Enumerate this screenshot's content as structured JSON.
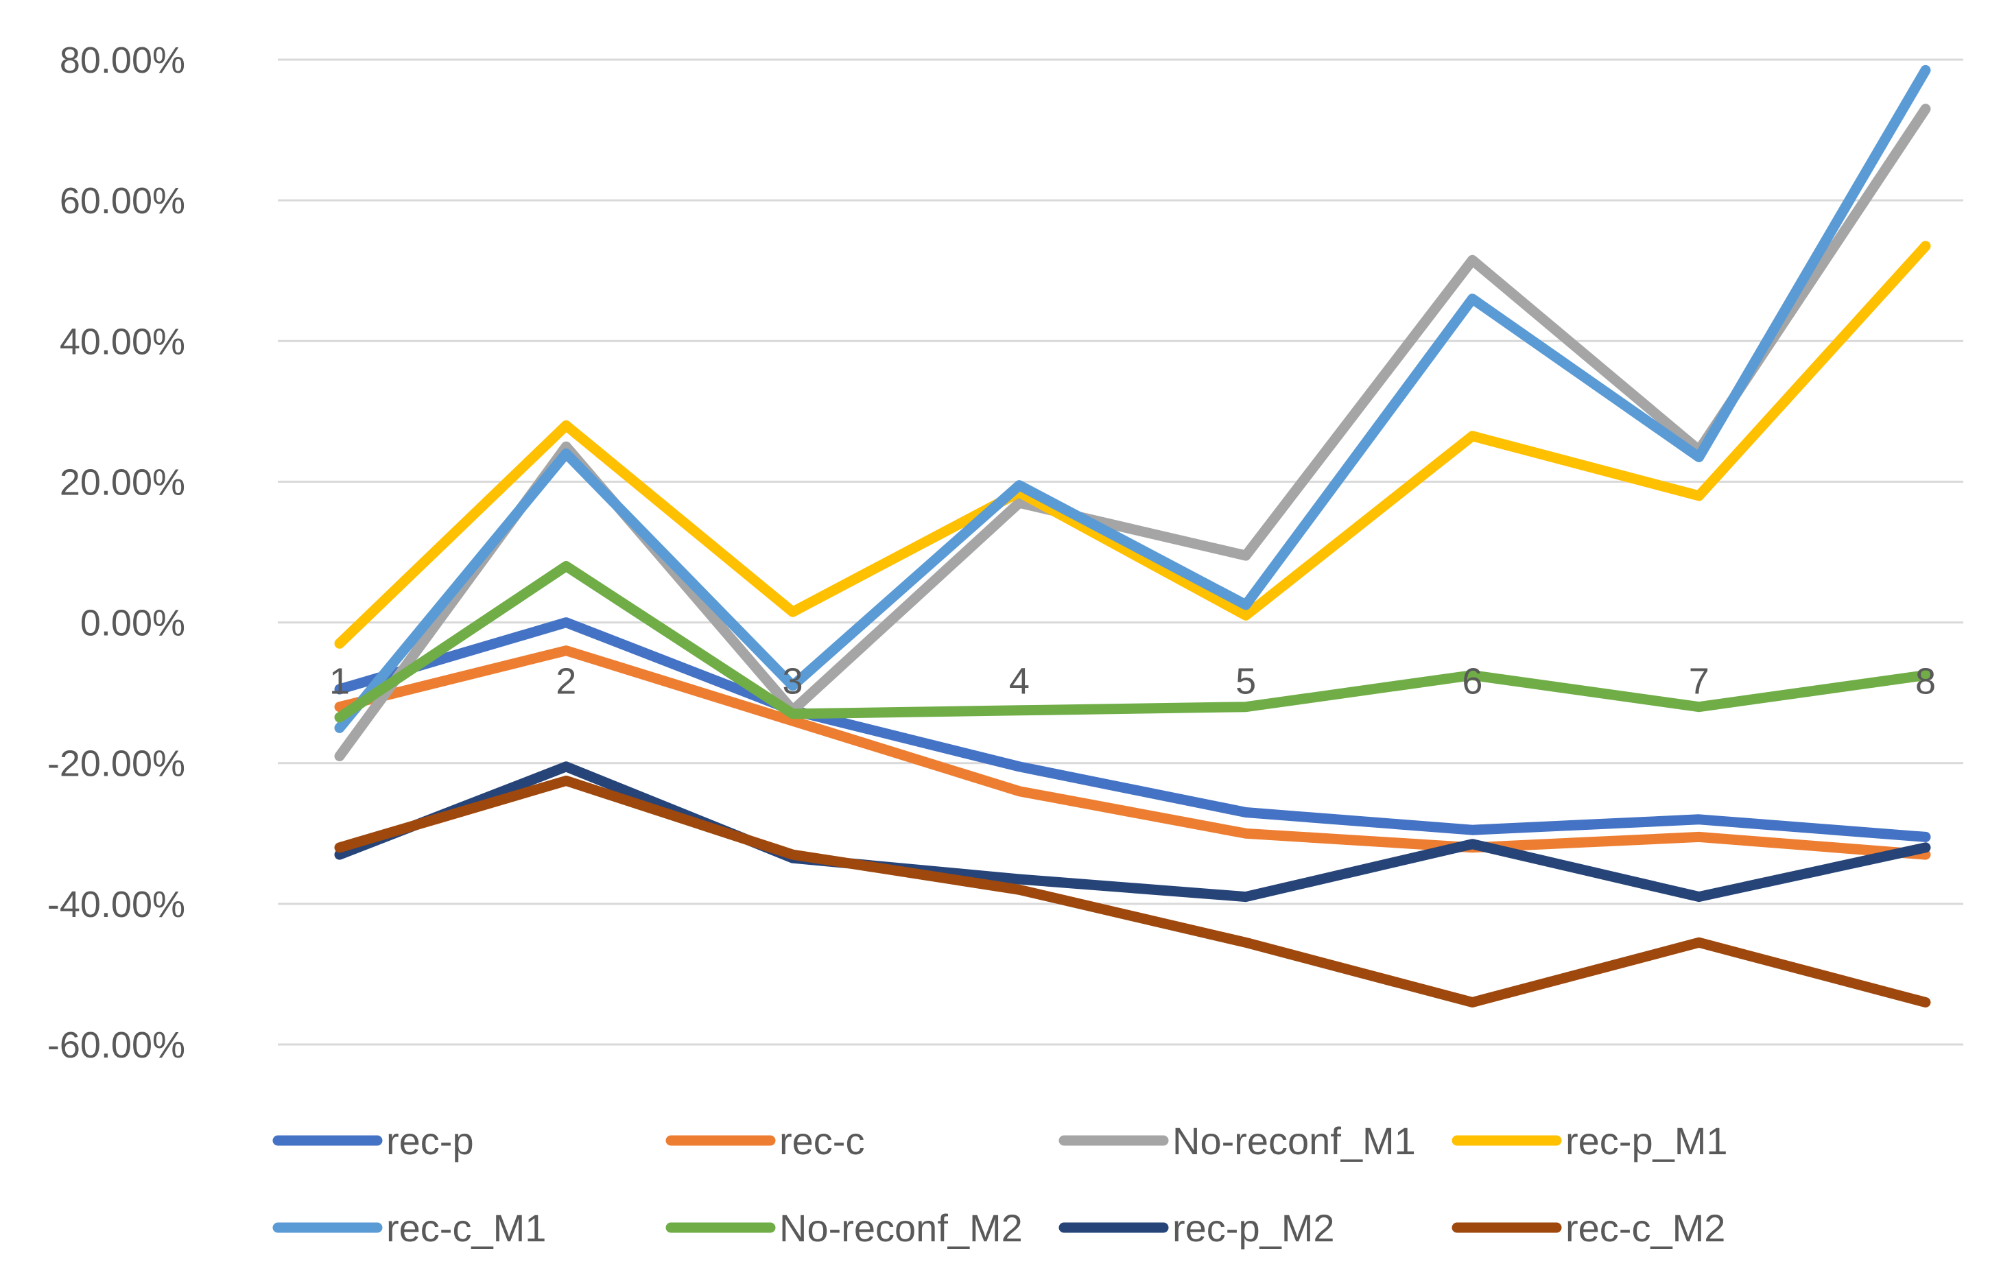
{
  "chart_data": {
    "type": "line",
    "title": "",
    "xlabel": "",
    "ylabel": "",
    "x": [
      "1",
      "2",
      "3",
      "4",
      "5",
      "6",
      "7",
      "8"
    ],
    "ylim": [
      -60,
      80
    ],
    "y_ticks": [
      80,
      60,
      40,
      20,
      0,
      -20,
      -40,
      -60
    ],
    "y_tick_labels": [
      "80.00%",
      "60.00%",
      "40.00%",
      "20.00%",
      "0.00%",
      "-20.00%",
      "-40.00%",
      "-60.00%"
    ],
    "grid": true,
    "legend_position": "bottom",
    "series": [
      {
        "name": "rec-p",
        "color": "#4472C4",
        "values": [
          -9.5,
          0,
          -12.5,
          -20.5,
          -27,
          -29.5,
          -28,
          -30.5
        ]
      },
      {
        "name": "rec-c",
        "color": "#ED7D31",
        "values": [
          -12,
          -4,
          -14,
          -24,
          -30,
          -32,
          -30.5,
          -33
        ]
      },
      {
        "name": "No-reconf_M1",
        "color": "#A5A5A5",
        "values": [
          -19,
          25,
          -12.5,
          17,
          9.5,
          51.5,
          24.5,
          73
        ]
      },
      {
        "name": "rec-p_M1",
        "color": "#FFC000",
        "values": [
          -3,
          28,
          1.5,
          18.5,
          1,
          26.5,
          18,
          53.5
        ]
      },
      {
        "name": "rec-c_M1",
        "color": "#5B9BD5",
        "values": [
          -15,
          24,
          -9,
          19.5,
          2.5,
          46,
          23.5,
          78.5
        ]
      },
      {
        "name": "No-reconf_M2",
        "color": "#70AD47",
        "values": [
          -13.5,
          8,
          -13,
          -12.5,
          -12,
          -7.5,
          -12,
          -7.5
        ]
      },
      {
        "name": "rec-p_M2",
        "color": "#264478",
        "values": [
          -33,
          -20.5,
          -33.5,
          -36.5,
          -39,
          -31.5,
          -39,
          -32
        ]
      },
      {
        "name": "rec-c_M2",
        "color": "#9E480E",
        "values": [
          -32,
          -22.5,
          -33,
          -38,
          -45.5,
          -54,
          -45.5,
          -54
        ]
      }
    ]
  }
}
